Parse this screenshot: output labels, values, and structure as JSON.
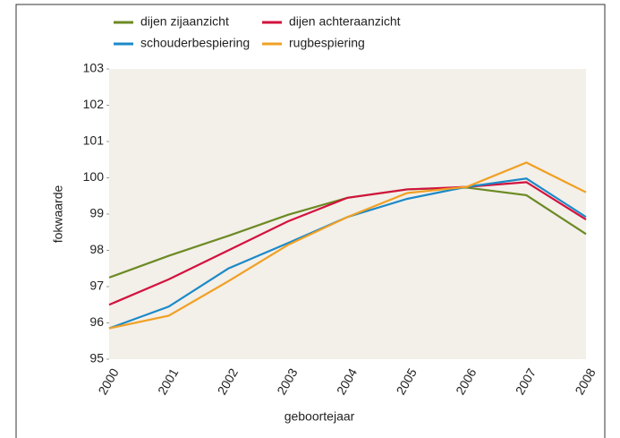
{
  "chart_data": {
    "type": "line",
    "x_label": "geboortejaar",
    "y_label": "fokwaarde",
    "categories": [
      "2000",
      "2001",
      "2002",
      "2003",
      "2004",
      "2005",
      "2006",
      "2007",
      "2008"
    ],
    "series": [
      {
        "name": "dijen zijaanzicht",
        "color": "#6b8a23",
        "values": [
          97.25,
          97.85,
          98.4,
          98.98,
          99.45,
          99.68,
          99.73,
          99.52,
          98.45
        ]
      },
      {
        "name": "dijen achteraanzicht",
        "color": "#d3123d",
        "values": [
          96.5,
          97.2,
          98.0,
          98.8,
          99.45,
          99.68,
          99.75,
          99.88,
          98.85
        ]
      },
      {
        "name": "schouderbespiering",
        "color": "#1c8ac8",
        "values": [
          95.85,
          96.45,
          97.5,
          98.2,
          98.92,
          99.42,
          99.75,
          99.98,
          98.92
        ]
      },
      {
        "name": "rugbespiering",
        "color": "#f0a023",
        "values": [
          95.85,
          96.2,
          97.15,
          98.15,
          98.92,
          99.58,
          99.75,
          100.42,
          99.6
        ]
      }
    ],
    "ylim": [
      95,
      103
    ],
    "yticks": [
      95,
      96,
      97,
      98,
      99,
      100,
      101,
      102,
      103
    ],
    "background": "#f3efe9"
  }
}
